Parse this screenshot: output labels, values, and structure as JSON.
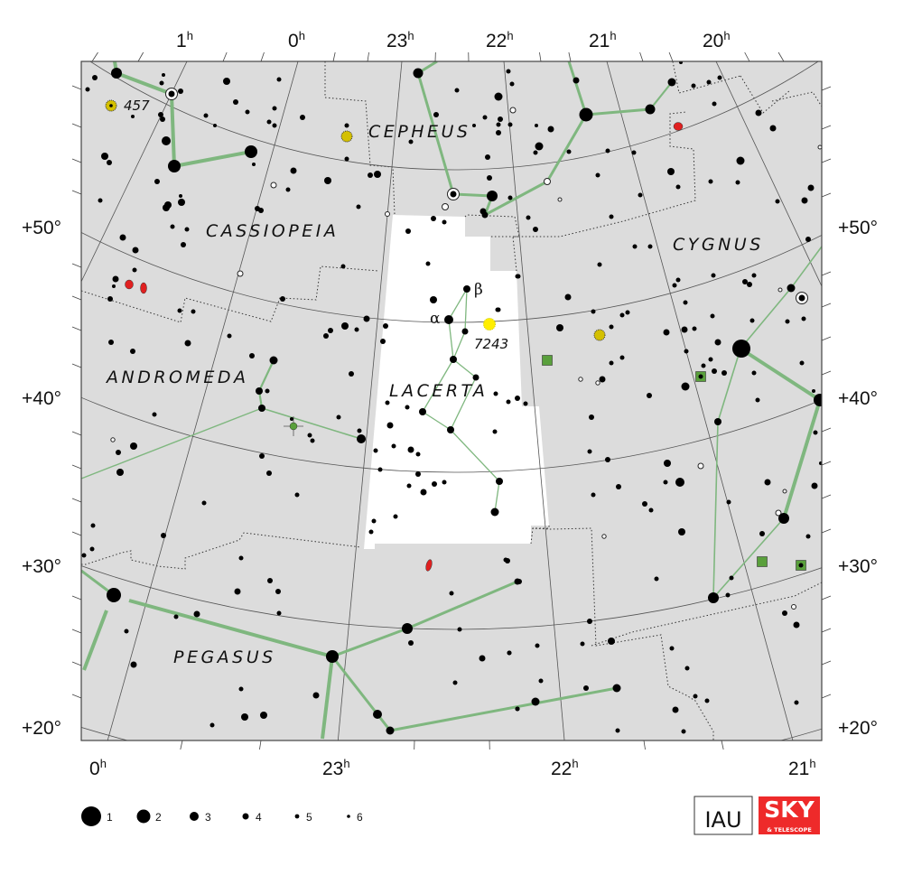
{
  "map": {
    "constellations": {
      "cassiopeia": "CASSIOPEIA",
      "cepheus": "CEPHEUS",
      "cygnus": "CYGNUS",
      "andromeda": "ANDROMEDA",
      "lacerta": "LACERTA",
      "pegasus": "PEGASUS"
    },
    "highlighted_constellation": "LACERTA",
    "object_labels": {
      "alpha": "α",
      "beta": "β",
      "ngc7243": "7243",
      "ngc457": "457"
    },
    "ra_top": [
      {
        "h": "1",
        "u": "h"
      },
      {
        "h": "0",
        "u": "h"
      },
      {
        "h": "23",
        "u": "h"
      },
      {
        "h": "22",
        "u": "h"
      },
      {
        "h": "21",
        "u": "h"
      },
      {
        "h": "20",
        "u": "h"
      }
    ],
    "ra_bottom": [
      {
        "h": "0",
        "u": "h"
      },
      {
        "h": "23",
        "u": "h"
      },
      {
        "h": "22",
        "u": "h"
      },
      {
        "h": "21",
        "u": "h"
      }
    ],
    "dec_labels": [
      "+50°",
      "+40°",
      "+30°",
      "+20°"
    ]
  },
  "legend": {
    "magnitudes": [
      "1",
      "2",
      "3",
      "4",
      "5",
      "6"
    ]
  },
  "logos": {
    "iau": "IAU",
    "sky": "SKY",
    "telescope": "& TELESCOPE"
  },
  "colors": {
    "sky_background": "#dcdcdc",
    "highlight_area": "#ffffff",
    "figure_lines": "#7fb77f",
    "open_cluster": "#d4c000",
    "bright_cluster": "#ffee00",
    "galaxy": "#e02020",
    "planetary_nebula": "#5aa03c",
    "sky_logo": "#ee2a2a"
  }
}
